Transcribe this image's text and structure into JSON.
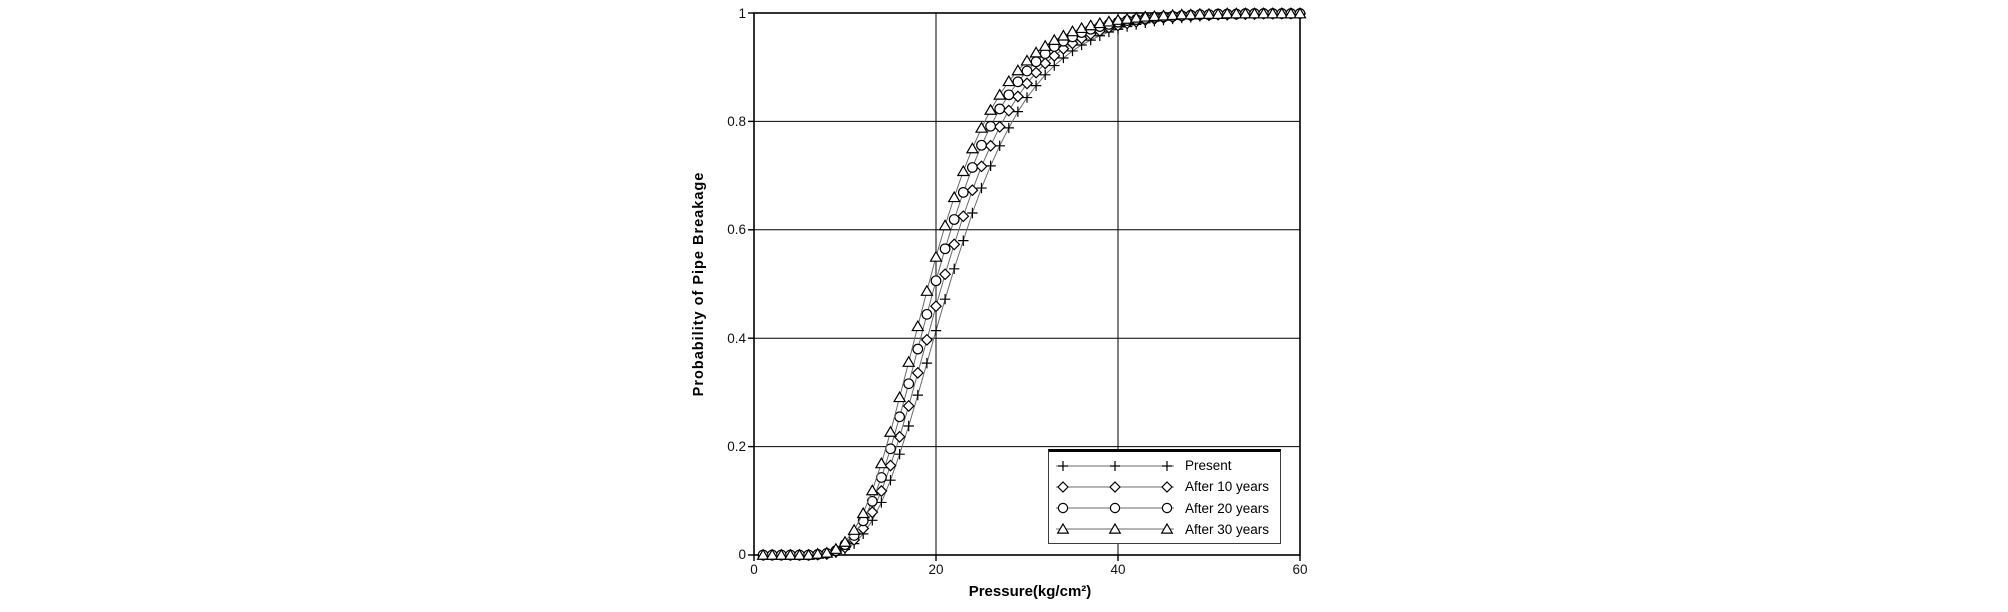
{
  "chart_data": {
    "type": "line",
    "title": "",
    "xlabel": "Pressure(kg/cm²)",
    "ylabel": "Probability of Pipe Breakage",
    "xlim": [
      0,
      60
    ],
    "ylim": [
      0,
      1
    ],
    "grid": true,
    "legend_position": "inside-bottom-right",
    "x_ticks": [
      0,
      20,
      40,
      60
    ],
    "y_ticks": [
      0,
      0.2,
      0.4,
      0.6,
      0.8,
      1
    ],
    "x_tick_labels": [
      "0",
      "20",
      "40",
      "60"
    ],
    "y_tick_labels": [
      "0",
      "0.2",
      "0.4",
      "0.6",
      "0.8",
      "1"
    ],
    "colors": {
      "series_line": "#6a6a6a",
      "marker": "#000000",
      "marker_fill": "#ffffff",
      "grid": "#000000",
      "axis": "#000000",
      "text": "#111111"
    },
    "x": [
      1,
      2,
      3,
      4,
      5,
      6,
      7,
      8,
      9,
      10,
      11,
      12,
      13,
      14,
      15,
      16,
      17,
      18,
      19,
      20,
      21,
      22,
      23,
      24,
      25,
      26,
      27,
      28,
      29,
      30,
      31,
      32,
      33,
      34,
      35,
      36,
      37,
      38,
      39,
      40,
      41,
      42,
      43,
      44,
      45,
      46,
      47,
      48,
      49,
      50,
      51,
      52,
      53,
      54,
      55,
      56,
      57,
      58,
      59,
      60
    ],
    "series": [
      {
        "name": "Present",
        "marker": "plus",
        "values": [
          0,
          0,
          0,
          0,
          0,
          0,
          0,
          0.001,
          0.004,
          0.01,
          0.021,
          0.039,
          0.064,
          0.097,
          0.138,
          0.186,
          0.238,
          0.295,
          0.354,
          0.414,
          0.472,
          0.528,
          0.58,
          0.631,
          0.677,
          0.718,
          0.755,
          0.788,
          0.818,
          0.844,
          0.866,
          0.886,
          0.903,
          0.917,
          0.93,
          0.941,
          0.95,
          0.958,
          0.965,
          0.97,
          0.975,
          0.979,
          0.982,
          0.985,
          0.987,
          0.989,
          0.991,
          0.992,
          0.994,
          0.995,
          0.996,
          0.996,
          0.997,
          0.997,
          0.998,
          0.998,
          0.998,
          0.999,
          0.999,
          0.999
        ]
      },
      {
        "name": "After 10 years",
        "marker": "diamond",
        "values": [
          0,
          0,
          0,
          0,
          0,
          0,
          0.001,
          0.002,
          0.006,
          0.014,
          0.028,
          0.049,
          0.079,
          0.118,
          0.165,
          0.218,
          0.275,
          0.336,
          0.397,
          0.459,
          0.518,
          0.573,
          0.625,
          0.673,
          0.717,
          0.755,
          0.79,
          0.82,
          0.846,
          0.87,
          0.89,
          0.907,
          0.921,
          0.934,
          0.944,
          0.953,
          0.961,
          0.967,
          0.973,
          0.977,
          0.981,
          0.984,
          0.987,
          0.989,
          0.991,
          0.992,
          0.994,
          0.995,
          0.996,
          0.996,
          0.997,
          0.997,
          0.998,
          0.998,
          0.998,
          0.999,
          0.999,
          0.999,
          0.999,
          0.999
        ]
      },
      {
        "name": "After 20 years",
        "marker": "circle",
        "values": [
          0,
          0,
          0,
          0,
          0,
          0,
          0.001,
          0.003,
          0.008,
          0.019,
          0.036,
          0.063,
          0.099,
          0.143,
          0.196,
          0.255,
          0.316,
          0.38,
          0.444,
          0.506,
          0.565,
          0.619,
          0.669,
          0.715,
          0.756,
          0.791,
          0.823,
          0.849,
          0.873,
          0.893,
          0.91,
          0.925,
          0.938,
          0.948,
          0.956,
          0.964,
          0.97,
          0.975,
          0.979,
          0.983,
          0.986,
          0.988,
          0.99,
          0.992,
          0.993,
          0.994,
          0.995,
          0.996,
          0.997,
          0.997,
          0.998,
          0.998,
          0.998,
          0.999,
          0.999,
          0.999,
          0.999,
          0.999,
          0.999,
          0.999
        ]
      },
      {
        "name": "After 30 years",
        "marker": "triangle",
        "values": [
          0,
          0,
          0,
          0,
          0,
          0,
          0.002,
          0.004,
          0.011,
          0.024,
          0.046,
          0.077,
          0.119,
          0.169,
          0.227,
          0.291,
          0.356,
          0.422,
          0.487,
          0.55,
          0.608,
          0.66,
          0.708,
          0.75,
          0.788,
          0.821,
          0.849,
          0.874,
          0.894,
          0.912,
          0.927,
          0.939,
          0.95,
          0.958,
          0.966,
          0.972,
          0.977,
          0.981,
          0.984,
          0.987,
          0.989,
          0.991,
          0.993,
          0.994,
          0.995,
          0.996,
          0.997,
          0.997,
          0.998,
          0.998,
          0.998,
          0.999,
          0.999,
          0.999,
          0.999,
          0.999,
          0.999,
          0.999,
          0.999,
          0.999
        ]
      }
    ]
  }
}
